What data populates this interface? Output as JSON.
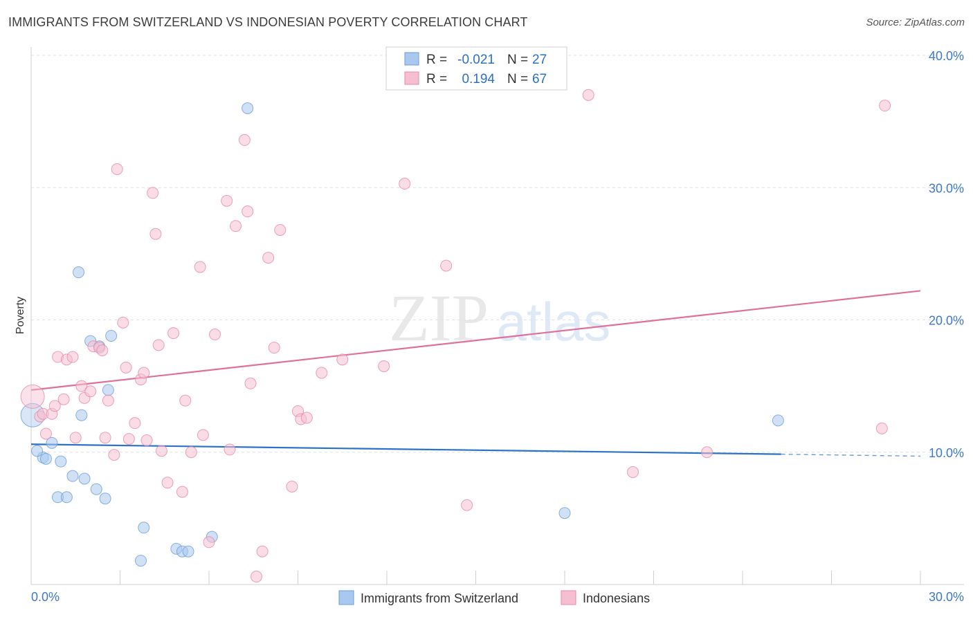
{
  "chart_data": {
    "type": "scatter",
    "title": "IMMIGRANTS FROM SWITZERLAND VS INDONESIAN POVERTY CORRELATION CHART",
    "source": "Source: ZipAtlas.com",
    "xlabel": "",
    "ylabel": "Poverty",
    "xlim": [
      0,
      30
    ],
    "ylim": [
      0,
      40
    ],
    "x_tick_labels": [
      "0.0%",
      "30.0%"
    ],
    "y_ticks": [
      10,
      20,
      30,
      40
    ],
    "y_tick_labels": [
      "10.0%",
      "20.0%",
      "30.0%",
      "40.0%"
    ],
    "grid": true,
    "watermark": {
      "zip": "ZIP",
      "atlas": "atlas"
    },
    "stats": [
      {
        "r_label": "R =",
        "r_value": "-0.021",
        "n_label": "N =",
        "n_value": "27"
      },
      {
        "r_label": "R =",
        "r_value": "0.194",
        "n_label": "N =",
        "n_value": "67"
      }
    ],
    "series": [
      {
        "name": "Immigrants from Switzerland",
        "color": "#a9c8ef",
        "edge": "#6b9ed8",
        "trend_color": "#2c72c8",
        "trend": {
          "x0": 0,
          "y0": 10.6,
          "x1": 25.3,
          "y1": 9.85,
          "dash_x1": 30,
          "dash_y1": 9.7
        },
        "points": [
          [
            0.05,
            12.8,
            "big"
          ],
          [
            0.4,
            9.6
          ],
          [
            0.5,
            9.5
          ],
          [
            0.7,
            10.7
          ],
          [
            0.9,
            6.6
          ],
          [
            1.0,
            9.3
          ],
          [
            1.2,
            6.6
          ],
          [
            1.4,
            8.2
          ],
          [
            1.6,
            23.6
          ],
          [
            1.7,
            12.8
          ],
          [
            1.8,
            8.0
          ],
          [
            2.0,
            18.4
          ],
          [
            2.2,
            7.2
          ],
          [
            2.3,
            18.0
          ],
          [
            2.5,
            6.5
          ],
          [
            2.6,
            14.7
          ],
          [
            2.7,
            18.8
          ],
          [
            3.7,
            1.8
          ],
          [
            3.8,
            4.3
          ],
          [
            4.9,
            2.7
          ],
          [
            5.1,
            2.5
          ],
          [
            5.3,
            2.5
          ],
          [
            6.1,
            3.6
          ],
          [
            7.3,
            36.0
          ],
          [
            18.0,
            5.4
          ],
          [
            25.2,
            12.4
          ],
          [
            0.2,
            10.1
          ]
        ]
      },
      {
        "name": "Indonesians",
        "color": "#f6bfd1",
        "edge": "#e58aa8",
        "trend_color": "#e0709a",
        "trend": {
          "x0": 0,
          "y0": 14.7,
          "x1": 30,
          "y1": 22.2
        },
        "points": [
          [
            0.05,
            14.2,
            "big"
          ],
          [
            0.3,
            12.7
          ],
          [
            0.4,
            12.9
          ],
          [
            0.5,
            11.4
          ],
          [
            0.7,
            12.9
          ],
          [
            0.8,
            13.5
          ],
          [
            0.9,
            17.2
          ],
          [
            1.1,
            14.0
          ],
          [
            1.2,
            17.0
          ],
          [
            1.4,
            17.2
          ],
          [
            1.5,
            11.1
          ],
          [
            1.7,
            15.0
          ],
          [
            1.8,
            14.1
          ],
          [
            2.0,
            14.6
          ],
          [
            2.1,
            18.0
          ],
          [
            2.3,
            17.9
          ],
          [
            2.4,
            17.7
          ],
          [
            2.5,
            11.1
          ],
          [
            2.6,
            13.9
          ],
          [
            2.8,
            9.8
          ],
          [
            2.9,
            31.4
          ],
          [
            3.1,
            19.8
          ],
          [
            3.2,
            16.4
          ],
          [
            3.3,
            11.0
          ],
          [
            3.5,
            12.2
          ],
          [
            3.7,
            15.5
          ],
          [
            3.8,
            16.0
          ],
          [
            3.9,
            10.9
          ],
          [
            4.1,
            29.6
          ],
          [
            4.2,
            26.5
          ],
          [
            4.3,
            18.1
          ],
          [
            4.4,
            10.1
          ],
          [
            4.6,
            7.7
          ],
          [
            4.8,
            19.0
          ],
          [
            5.1,
            7.0
          ],
          [
            5.2,
            13.9
          ],
          [
            5.4,
            10.0
          ],
          [
            5.7,
            24.0
          ],
          [
            5.8,
            11.3
          ],
          [
            6.0,
            3.2
          ],
          [
            6.2,
            18.9
          ],
          [
            6.6,
            29.0
          ],
          [
            6.7,
            10.2
          ],
          [
            6.9,
            27.1
          ],
          [
            7.2,
            33.6
          ],
          [
            7.3,
            28.2
          ],
          [
            7.4,
            15.2
          ],
          [
            7.6,
            0.6
          ],
          [
            7.8,
            2.5
          ],
          [
            8.0,
            24.7
          ],
          [
            8.2,
            17.9
          ],
          [
            8.4,
            26.8
          ],
          [
            8.8,
            7.4
          ],
          [
            9.0,
            13.1
          ],
          [
            9.1,
            12.5
          ],
          [
            9.3,
            12.6
          ],
          [
            9.8,
            16.0
          ],
          [
            10.5,
            17.0
          ],
          [
            11.9,
            16.5
          ],
          [
            12.6,
            30.3
          ],
          [
            14.0,
            24.1
          ],
          [
            14.7,
            6.0
          ],
          [
            18.8,
            37.0
          ],
          [
            20.3,
            8.5
          ],
          [
            22.8,
            10.0
          ],
          [
            28.7,
            11.8
          ],
          [
            28.8,
            36.2
          ]
        ]
      }
    ]
  }
}
